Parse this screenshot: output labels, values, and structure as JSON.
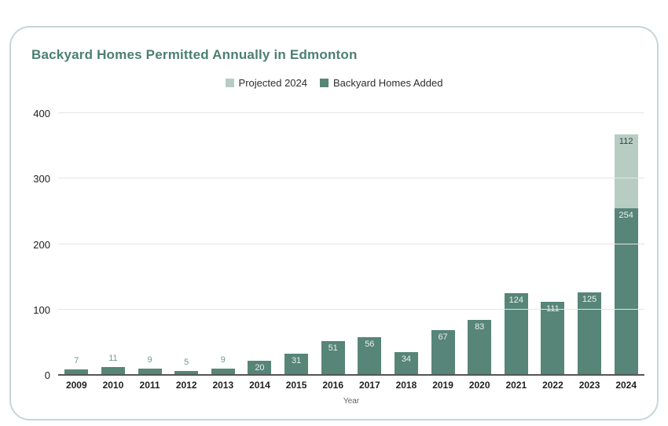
{
  "chart_data": {
    "type": "bar",
    "title": "Backyard Homes Permitted Annually in Edmonton",
    "xlabel": "Year",
    "ylabel": "",
    "ylim": [
      0,
      400
    ],
    "yticks": [
      0,
      100,
      200,
      300,
      400
    ],
    "grid": true,
    "legend_position": "top",
    "categories": [
      "2009",
      "2010",
      "2011",
      "2012",
      "2013",
      "2014",
      "2015",
      "2016",
      "2017",
      "2018",
      "2019",
      "2020",
      "2021",
      "2022",
      "2023",
      "2024"
    ],
    "series": [
      {
        "name": "Backyard Homes Added",
        "color": "#578578",
        "values": [
          7,
          11,
          9,
          5,
          9,
          20,
          31,
          51,
          56,
          34,
          67,
          83,
          124,
          111,
          125,
          254
        ]
      },
      {
        "name": "Projected 2024",
        "color": "#b7cdc4",
        "values": [
          null,
          null,
          null,
          null,
          null,
          null,
          null,
          null,
          null,
          null,
          null,
          null,
          null,
          null,
          null,
          112
        ]
      }
    ],
    "legend": [
      {
        "label": "Projected 2024",
        "swatch_color": "#b7cdc4"
      },
      {
        "label": "Backyard Homes Added",
        "swatch_color": "#578578"
      }
    ],
    "value_labels": {
      "inside_min": 20,
      "inside_color": "#eaf1ee",
      "outside_color": "#6e9c8f",
      "projected_color": "#37413e"
    }
  },
  "colors": {
    "title_text": "#4b7f72",
    "card_border": "#c8d4da",
    "gridline": "#e4e4e4",
    "axis_line": "#565656",
    "tick_text": "#1f1f1f",
    "legend_text": "#2d2d2d",
    "xaxis_title_text": "#5f6368"
  }
}
